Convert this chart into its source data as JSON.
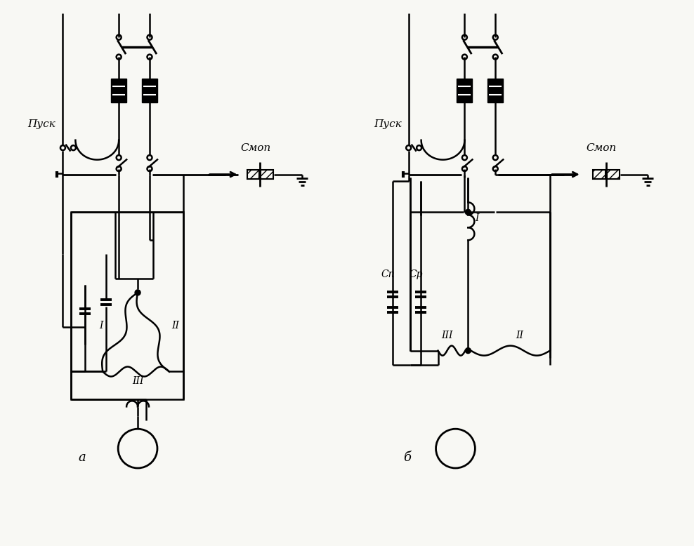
{
  "bg_color": "#f8f8f4",
  "fig_width": 9.88,
  "fig_height": 7.78,
  "label_a": "a",
  "label_b": "б",
  "label_pusk": "Пуск",
  "label_stop": "Смоп",
  "label_I": "I",
  "label_II": "II",
  "label_III": "III",
  "label_Cn": "Cп",
  "label_Cr": "Cр"
}
